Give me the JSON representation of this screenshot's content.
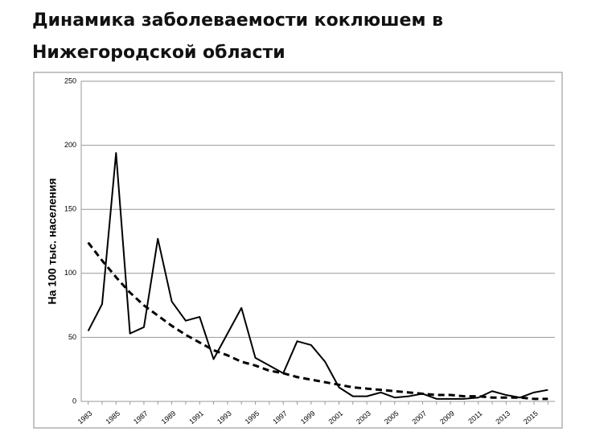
{
  "chart_data": {
    "type": "line",
    "title": "Динамика заболеваемости коклюшем в Нижегородской области",
    "y_label": "На 100 тыс. населения",
    "categories": [
      "1983",
      null,
      "1985",
      null,
      "1987",
      null,
      "1989",
      null,
      "1991",
      null,
      "1993",
      null,
      "1995",
      null,
      "1997",
      null,
      "1999",
      null,
      "2001",
      null,
      "2003",
      null,
      "2005",
      null,
      "2007",
      null,
      "2009",
      null,
      "2011",
      null,
      "2013",
      null,
      "2015",
      null
    ],
    "series": [
      {
        "color": "#000000",
        "dash": false,
        "values": [
          55,
          76,
          194,
          53,
          58,
          127,
          78,
          63,
          66,
          33,
          53,
          73,
          34,
          28,
          22,
          47,
          44,
          31,
          11,
          4,
          4,
          7,
          3,
          4,
          6,
          2,
          2,
          2,
          3,
          8,
          5,
          3,
          7,
          9
        ]
      },
      {
        "color": "#000000",
        "dash": true,
        "values": [
          124,
          110,
          97,
          85,
          75,
          67,
          59,
          52,
          46,
          40,
          36,
          31,
          28,
          24,
          22,
          19,
          17,
          15,
          13,
          11,
          10,
          9,
          8,
          7,
          6,
          5,
          5,
          4,
          4,
          3,
          3,
          3,
          2,
          2
        ]
      }
    ],
    "ylim": [
      0,
      250
    ],
    "yticks": [
      0,
      50,
      100,
      150,
      200,
      250
    ],
    "grid": true
  }
}
